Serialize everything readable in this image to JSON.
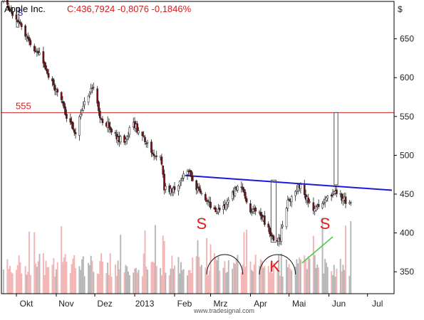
{
  "chart_data": {
    "type": "candlestick",
    "title": {
      "instrument": "Apple Inc.",
      "quote": "C:436,7924 -0,8076 -0,1846%",
      "quote_color": "#d81b1b"
    },
    "ylabel": "$",
    "ylim": [
      330,
      700
    ],
    "yticks": [
      350,
      400,
      450,
      500,
      550,
      600,
      650
    ],
    "x_range": [
      "2012-10-01",
      "2013-07-20"
    ],
    "x_labels": [
      {
        "label": "Okt",
        "date": "2012-10-01"
      },
      {
        "label": "Nov",
        "date": "2012-11-01"
      },
      {
        "label": "Dez",
        "date": "2012-12-01"
      },
      {
        "label": "2013",
        "date": "2013-01-01"
      },
      {
        "label": "Feb",
        "date": "2013-02-01"
      },
      {
        "label": "Mrz",
        "date": "2013-03-01"
      },
      {
        "label": "Apr",
        "date": "2013-04-01"
      },
      {
        "label": "Mai",
        "date": "2013-05-01"
      },
      {
        "label": "Jun",
        "date": "2013-06-01"
      },
      {
        "label": "Jul",
        "date": "2013-07-01"
      }
    ],
    "price_path": [
      [
        "2012-09-21",
        700
      ],
      [
        "2012-10-03",
        672
      ],
      [
        "2012-10-10",
        648
      ],
      [
        "2012-10-18",
        632
      ],
      [
        "2012-10-26",
        604
      ],
      [
        "2012-11-02",
        580
      ],
      [
        "2012-11-09",
        550
      ],
      [
        "2012-11-16",
        530
      ],
      [
        "2012-11-23",
        570
      ],
      [
        "2012-11-30",
        588
      ],
      [
        "2012-12-06",
        545
      ],
      [
        "2012-12-12",
        538
      ],
      [
        "2012-12-18",
        522
      ],
      [
        "2012-12-24",
        520
      ],
      [
        "2012-12-31",
        540
      ],
      [
        "2013-01-07",
        525
      ],
      [
        "2013-01-14",
        505
      ],
      [
        "2013-01-21",
        500
      ],
      [
        "2013-01-24",
        458
      ],
      [
        "2013-01-31",
        455
      ],
      [
        "2013-02-07",
        470
      ],
      [
        "2013-02-12",
        478
      ],
      [
        "2013-02-19",
        455
      ],
      [
        "2013-02-26",
        445
      ],
      [
        "2013-03-05",
        425
      ],
      [
        "2013-03-11",
        432
      ],
      [
        "2013-03-18",
        452
      ],
      [
        "2013-03-25",
        460
      ],
      [
        "2013-04-01",
        430
      ],
      [
        "2013-04-08",
        428
      ],
      [
        "2013-04-15",
        405
      ],
      [
        "2013-04-19",
        390
      ],
      [
        "2013-04-24",
        395
      ],
      [
        "2013-04-30",
        440
      ],
      [
        "2013-05-06",
        455
      ],
      [
        "2013-05-10",
        462
      ],
      [
        "2013-05-16",
        440
      ],
      [
        "2013-05-20",
        428
      ],
      [
        "2013-05-27",
        442
      ],
      [
        "2013-06-03",
        450
      ],
      [
        "2013-06-06",
        454
      ],
      [
        "2013-06-10",
        448
      ],
      [
        "2013-06-14",
        440
      ],
      [
        "2013-06-18",
        436
      ]
    ],
    "volume_scale": [
      0,
      100
    ],
    "resistance_line": {
      "label": "555",
      "value": 555
    },
    "neckline": {
      "from": [
        "2013-02-09",
        474
      ],
      "to": [
        "2013-07-20",
        455
      ]
    },
    "annotations": [
      {
        "text": "S",
        "date": "2012-10-04",
        "price": 680
      },
      {
        "text": "S",
        "date": "2013-02-22",
        "price": 405
      },
      {
        "text": "K",
        "date": "2013-04-20",
        "price": 350
      },
      {
        "text": "S",
        "date": "2013-05-29",
        "price": 405
      }
    ],
    "highlight_boxes": [
      {
        "date_from": "2012-10-01",
        "date_to": "2012-10-03",
        "high": 690,
        "low": 665
      },
      {
        "date_from": "2013-04-17",
        "date_to": "2013-04-21",
        "high": 468,
        "low": 388
      },
      {
        "date_from": "2013-06-05",
        "date_to": "2013-06-08",
        "high": 555,
        "low": 462
      }
    ],
    "volume_arcs": [
      {
        "date_from": "2013-02-26",
        "date_to": "2013-03-26"
      },
      {
        "date_from": "2013-04-08",
        "date_to": "2013-05-06"
      }
    ],
    "volume_trendline": {
      "from": "2013-05-11",
      "to": "2013-06-04",
      "color": "#44cc44"
    },
    "credit": "www.tradesignal.com",
    "colors": {
      "up": "#ffffff",
      "down": "#7a0f14",
      "wick": "#222222",
      "resistance": "#cc2222",
      "neckline": "#1a1adb",
      "annotation": "#e01b1b",
      "annotation_small": "#1a1adb",
      "volume_up": "#b8b8b8",
      "volume_down": "#f2b6b6",
      "grid_border": "#000000",
      "ticks": "#222222"
    }
  }
}
